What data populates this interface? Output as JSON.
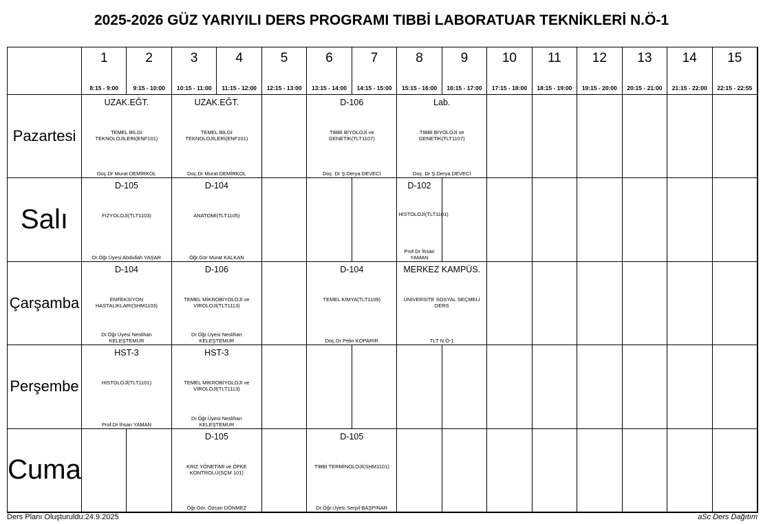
{
  "title": "2025-2026 GÜZ YARIYILI DERS PROGRAMI TIBBİ LABORATUAR TEKNİKLERİ N.Ö-1",
  "periods": [
    {
      "num": "1",
      "time": "8:15 - 9:00"
    },
    {
      "num": "2",
      "time": "9:15 - 10:00"
    },
    {
      "num": "3",
      "time": "10:15 - 11:00"
    },
    {
      "num": "4",
      "time": "11:15 - 12:00"
    },
    {
      "num": "5",
      "time": "12:15 - 13:00"
    },
    {
      "num": "6",
      "time": "13:15 - 14:00"
    },
    {
      "num": "7",
      "time": "14:15 - 15:00"
    },
    {
      "num": "8",
      "time": "15:15 - 16:00"
    },
    {
      "num": "9",
      "time": "16:15 - 17:00"
    },
    {
      "num": "10",
      "time": "17:15 - 18:00"
    },
    {
      "num": "11",
      "time": "18:15 - 19:00"
    },
    {
      "num": "12",
      "time": "19:15 - 20:00"
    },
    {
      "num": "13",
      "time": "20:15 - 21:00"
    },
    {
      "num": "14",
      "time": "21:15 - 22:00"
    },
    {
      "num": "15",
      "time": "22:15 - 22:55"
    }
  ],
  "days": [
    {
      "name": "Pazartesi",
      "size": "large-small",
      "cells": [
        {
          "span": 2,
          "room": "UZAK.EĞT.",
          "course": "TEMEL BİLGİ TEKNOLOJİLERİ(ENF101)",
          "teacher": "Doç.Dr Murat DEMİRKOL"
        },
        {
          "span": 2,
          "room": "UZAK.EĞT.",
          "course": "TEMEL BİLGİ TEKNOLOJİLERİ(ENF101)",
          "teacher": "Doç.Dr Murat DEMİRKOL"
        },
        {
          "span": 1
        },
        {
          "span": 2,
          "room": "D-106",
          "course": "TIBBİ BİYOLOJİ ve GENETİK(TLT1107)",
          "teacher": "Doç. Dr  Ş.Derya DEVECİ"
        },
        {
          "span": 2,
          "room": "Lab.",
          "course": "TIBBİ BİYOLOJİ ve GENETİK(TLT1107)",
          "teacher": "Doç. Dr  Ş.Derya DEVECİ"
        },
        {
          "span": 1
        },
        {
          "span": 1
        },
        {
          "span": 1
        },
        {
          "span": 1
        },
        {
          "span": 1
        },
        {
          "span": 1
        }
      ]
    },
    {
      "name": "Salı",
      "size": "big",
      "cells": [
        {
          "span": 2,
          "room": "D-105",
          "course": "FİZYOLOJİ(TLT1103)",
          "teacher": "Dr.Öğr.Üyesi Abdullah YAŞAR"
        },
        {
          "span": 2,
          "room": "D-104",
          "course": "ANATOMİ(TLT1105)",
          "teacher": "Öğr.Gör Murat KALKAN"
        },
        {
          "span": 1
        },
        {
          "span": 1
        },
        {
          "span": 1
        },
        {
          "span": 1,
          "room": "D-102",
          "course": "HİSTOLOJİ(TLT1101)",
          "teacher": "Prof.Dr İhsan YAMAN"
        },
        {
          "span": 1
        },
        {
          "span": 1
        },
        {
          "span": 1
        },
        {
          "span": 1
        },
        {
          "span": 1
        },
        {
          "span": 1
        },
        {
          "span": 1
        }
      ]
    },
    {
      "name": "Çarşamba",
      "size": "small",
      "cells": [
        {
          "span": 2,
          "room": "D-104",
          "course": "ENFEKSİYON HASTALIKLARI(SHM1103)",
          "teacher": "Dr.Öğr.Üyesi Neslihan KELEŞTEMUR"
        },
        {
          "span": 2,
          "room": "D-106",
          "course": "TEMEL MİKROBİYOLOJİ ve VİROLOJİ(TLT1113)",
          "teacher": "Dr.Öğr.Üyesi Neslihan KELEŞTEMUR"
        },
        {
          "span": 1
        },
        {
          "span": 2,
          "room": "D-104",
          "course": "TEMEL KİMYA(TLT1109)",
          "teacher": "Doç.Dr Pelin KOPARIR"
        },
        {
          "span": 2,
          "room": "MERKEZ KAMPÜS.",
          "course": "ÜNİVERSİTE SOSYAL SEÇMELİ DERS",
          "teacher": "TLT N.Ö-1"
        },
        {
          "span": 1
        },
        {
          "span": 1
        },
        {
          "span": 1
        },
        {
          "span": 1
        },
        {
          "span": 1
        },
        {
          "span": 1
        }
      ]
    },
    {
      "name": "Perşembe",
      "size": "small",
      "cells": [
        {
          "span": 2,
          "room": "HST-3",
          "course": "HİSTOLOJİ(TLT1101)",
          "teacher": "Prof.Dr İhsan YAMAN"
        },
        {
          "span": 2,
          "room": "HST-3",
          "course": "TEMEL MİKROBİYOLOJİ ve VİROLOJİ(TLT1113)",
          "teacher": "Dr.Öğr.Üyesi Neslihan KELEŞTEMUR"
        },
        {
          "span": 1
        },
        {
          "span": 1
        },
        {
          "span": 1
        },
        {
          "span": 1
        },
        {
          "span": 1
        },
        {
          "span": 1
        },
        {
          "span": 1
        },
        {
          "span": 1
        },
        {
          "span": 1
        },
        {
          "span": 1
        },
        {
          "span": 1
        }
      ]
    },
    {
      "name": "Cuma",
      "size": "big",
      "cells": [
        {
          "span": 1
        },
        {
          "span": 1
        },
        {
          "span": 2,
          "room": "D-105",
          "course": "KRİZ YÖNETİMİ ve ÖFKE KONTROLÜ(SÇM 101)",
          "teacher": "Öğr.Gör. Özcan DÖNMEZ"
        },
        {
          "span": 1
        },
        {
          "span": 2,
          "room": "D-105",
          "course": "TIBBİ TERMİNOLOJİ(SHM1101)",
          "teacher": "Dr.Öğr.Üyesi Serpil BAŞPINAR"
        },
        {
          "span": 1
        },
        {
          "span": 1
        },
        {
          "span": 1
        },
        {
          "span": 1
        },
        {
          "span": 1
        },
        {
          "span": 1
        },
        {
          "span": 1
        },
        {
          "span": 1
        }
      ]
    }
  ],
  "footer": {
    "created": "Ders Planı Oluşturuldu:24.9.2025",
    "software": "aSc Ders Dağıtım"
  }
}
